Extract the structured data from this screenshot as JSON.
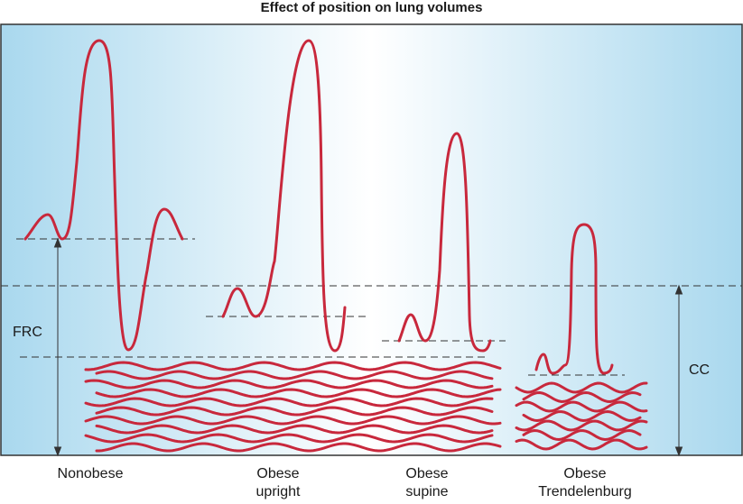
{
  "title": "Effect of position on lung volumes",
  "labels": {
    "frc": "FRC",
    "cc": "CC",
    "groups": [
      {
        "line1": "Nonobese",
        "line2": ""
      },
      {
        "line1": "Obese",
        "line2": "upright"
      },
      {
        "line1": "Obese",
        "line2": "supine"
      },
      {
        "line1": "Obese",
        "line2": "Trendelenburg"
      }
    ]
  },
  "colors": {
    "trace": "#c8283c",
    "panel_left": "#a9d8ee",
    "panel_mid": "#ffffff",
    "panel_right": "#a9d8ee",
    "lines": "#333333"
  }
}
